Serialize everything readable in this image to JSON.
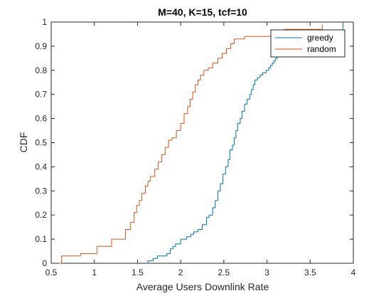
{
  "chart_data": {
    "type": "line",
    "title": "M=40, K=15, tcf=10",
    "xlabel": "Average Users Downlink Rate",
    "ylabel": "CDF",
    "xlim": [
      0.5,
      4
    ],
    "ylim": [
      0,
      1
    ],
    "xticks": [
      "0.5",
      "1",
      "1.5",
      "2",
      "2.5",
      "3",
      "3.5",
      "4"
    ],
    "yticks": [
      "0",
      "0.1",
      "0.2",
      "0.3",
      "0.4",
      "0.5",
      "0.6",
      "0.7",
      "0.8",
      "0.9",
      "1"
    ],
    "grid": false,
    "legend": "top-right",
    "series": [
      {
        "name": "greedy",
        "color": "#0072BD",
        "style": "step",
        "x": [
          1.61,
          1.62,
          1.68,
          1.73,
          1.84,
          1.88,
          1.91,
          1.94,
          2.0,
          2.07,
          2.12,
          2.15,
          2.2,
          2.25,
          2.3,
          2.33,
          2.37,
          2.4,
          2.43,
          2.46,
          2.49,
          2.52,
          2.55,
          2.57,
          2.6,
          2.62,
          2.64,
          2.66,
          2.69,
          2.71,
          2.74,
          2.77,
          2.8,
          2.82,
          2.84,
          2.86,
          2.89,
          2.92,
          2.95,
          2.99,
          3.02,
          3.04,
          3.06,
          3.08,
          3.1,
          3.12,
          3.14,
          3.2,
          3.88
        ],
        "y": [
          0,
          0.01,
          0.02,
          0.03,
          0.04,
          0.06,
          0.07,
          0.08,
          0.1,
          0.11,
          0.12,
          0.13,
          0.14,
          0.16,
          0.19,
          0.2,
          0.23,
          0.26,
          0.3,
          0.33,
          0.37,
          0.4,
          0.43,
          0.47,
          0.49,
          0.52,
          0.55,
          0.58,
          0.6,
          0.63,
          0.66,
          0.68,
          0.7,
          0.72,
          0.74,
          0.76,
          0.77,
          0.78,
          0.79,
          0.8,
          0.81,
          0.82,
          0.83,
          0.84,
          0.85,
          0.86,
          0.87,
          0.88,
          1.0
        ]
      },
      {
        "name": "random",
        "color": "#D95319",
        "style": "step",
        "x": [
          0.59,
          0.62,
          0.84,
          1.03,
          1.2,
          1.36,
          1.42,
          1.46,
          1.49,
          1.52,
          1.55,
          1.59,
          1.62,
          1.65,
          1.7,
          1.74,
          1.78,
          1.82,
          1.86,
          1.9,
          1.95,
          2.0,
          2.04,
          2.08,
          2.11,
          2.14,
          2.17,
          2.2,
          2.23,
          2.27,
          2.32,
          2.37,
          2.43,
          2.48,
          2.53,
          2.58,
          2.62,
          2.74,
          3.05,
          3.2,
          3.64
        ],
        "y": [
          0,
          0.03,
          0.04,
          0.07,
          0.1,
          0.14,
          0.17,
          0.21,
          0.24,
          0.26,
          0.29,
          0.32,
          0.34,
          0.36,
          0.39,
          0.42,
          0.45,
          0.48,
          0.51,
          0.52,
          0.55,
          0.58,
          0.62,
          0.65,
          0.68,
          0.71,
          0.74,
          0.76,
          0.78,
          0.8,
          0.81,
          0.83,
          0.85,
          0.87,
          0.89,
          0.91,
          0.93,
          0.94,
          0.95,
          0.97,
          0.99
        ]
      }
    ]
  }
}
